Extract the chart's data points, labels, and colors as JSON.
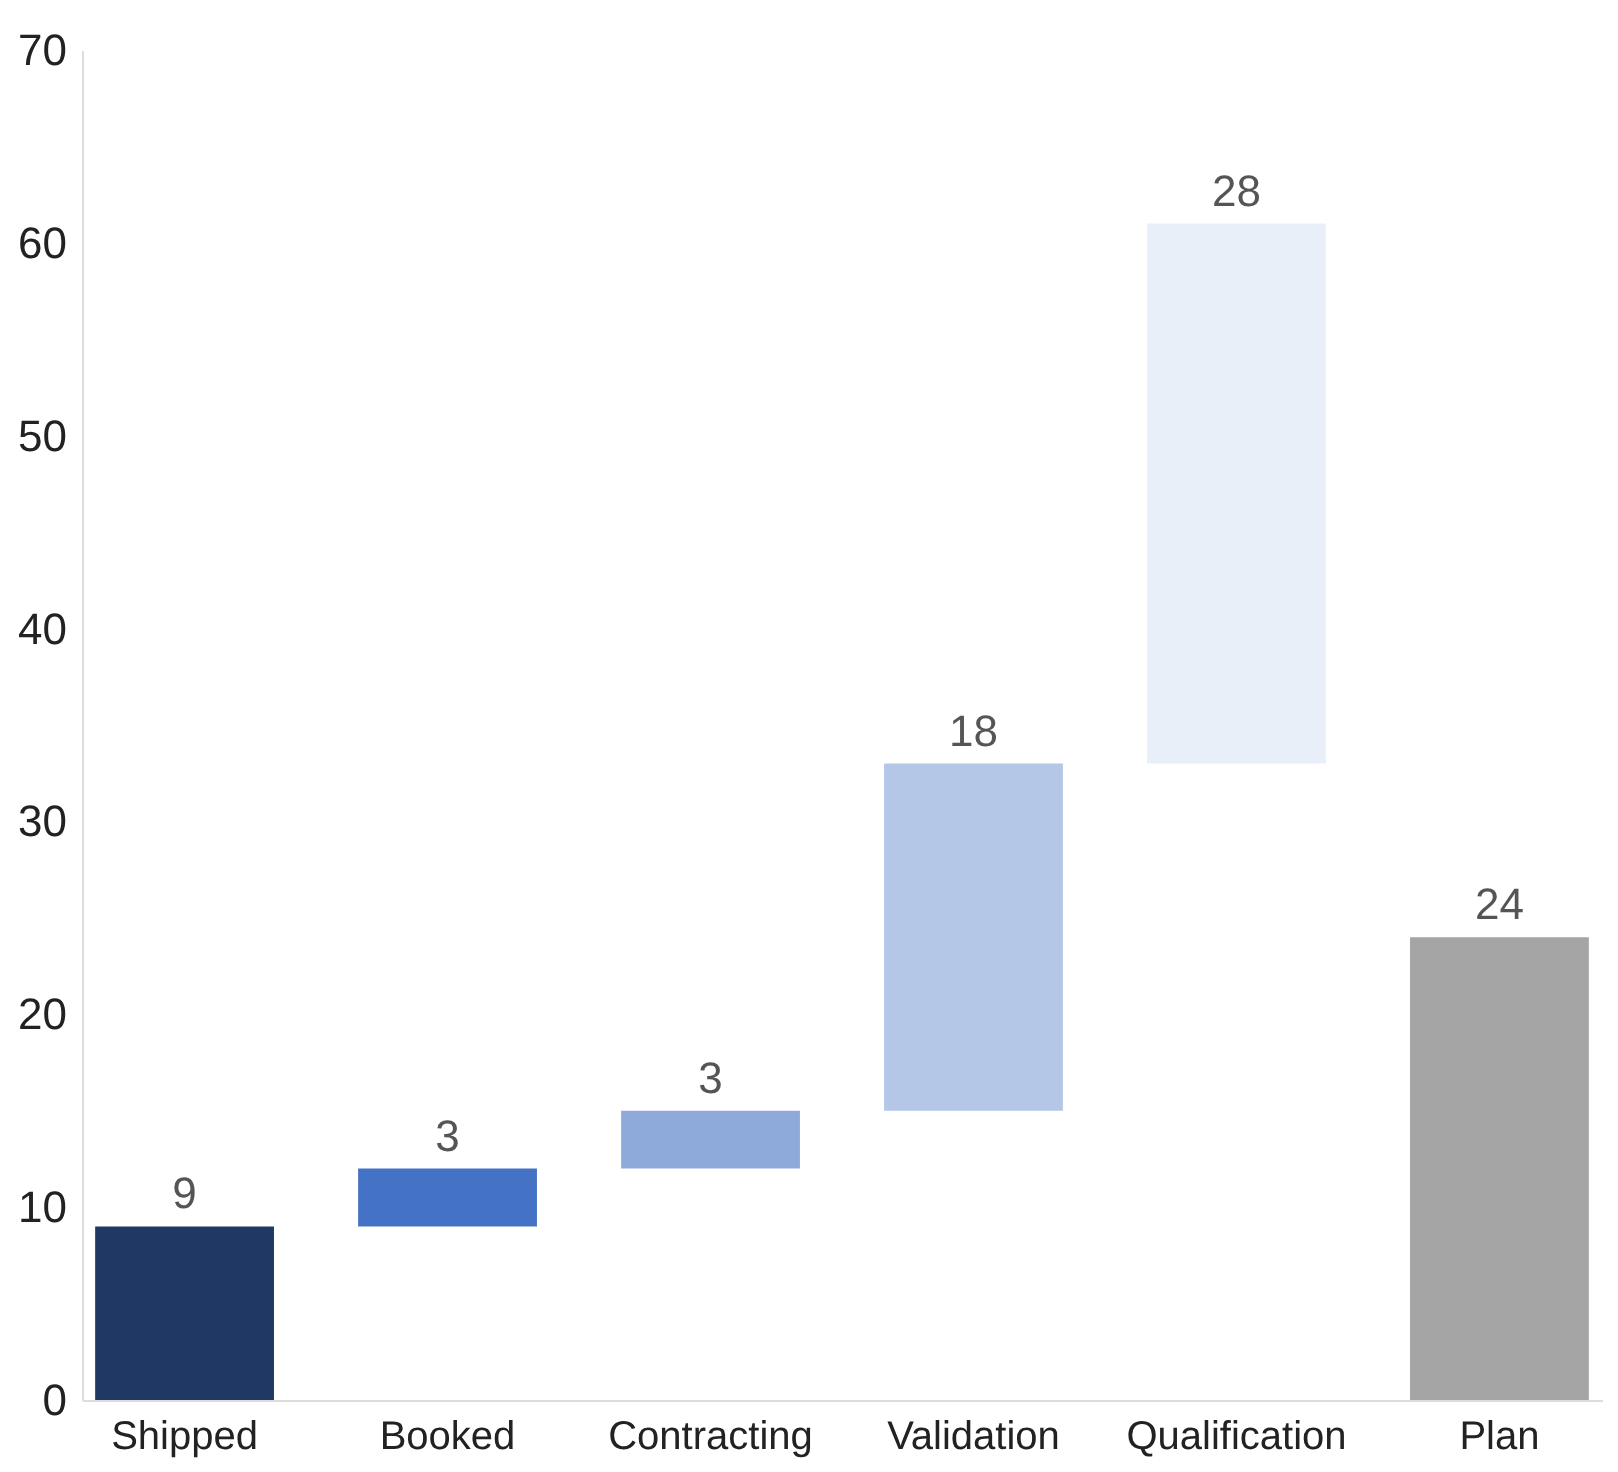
{
  "chart_data": {
    "type": "bar",
    "categories": [
      "Shipped",
      "Booked",
      "Contracting",
      "Validation",
      "Qualification",
      "Plan"
    ],
    "values": [
      9,
      3,
      3,
      18,
      28,
      24
    ],
    "base": [
      0,
      9,
      12,
      15,
      33,
      0
    ],
    "colors": [
      "#203864",
      "#4472c4",
      "#8eaadb",
      "#b4c7e7",
      "#e9eff8",
      "#a5a5a5"
    ],
    "ylim": [
      0,
      70
    ],
    "yticks": [
      0,
      10,
      20,
      30,
      40,
      50,
      60,
      70
    ],
    "grid": false,
    "data_labels": true
  }
}
